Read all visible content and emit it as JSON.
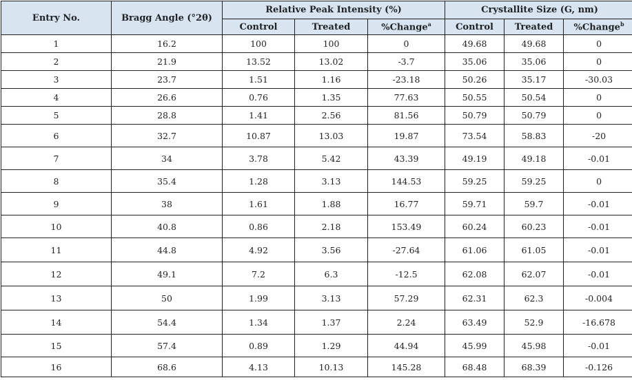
{
  "table": {
    "headers": {
      "entry": "Entry No.",
      "bragg": "Bragg Angle (°2θ)",
      "intensity_group": "Relative Peak Intensity (%)",
      "size_group": "Crystallite Size (G, nm)",
      "control": "Control",
      "treated": "Treated",
      "change": "%Change",
      "change_a_mark": "a",
      "change_b_mark": "b"
    },
    "rows": [
      {
        "entry": "1",
        "bragg": "16.2",
        "pi_control": "100",
        "pi_treated": "100",
        "pi_change": "0",
        "cs_control": "49.68",
        "cs_treated": "49.68",
        "cs_change": "0"
      },
      {
        "entry": "2",
        "bragg": "21.9",
        "pi_control": "13.52",
        "pi_treated": "13.02",
        "pi_change": "-3.7",
        "cs_control": "35.06",
        "cs_treated": "35.06",
        "cs_change": "0"
      },
      {
        "entry": "3",
        "bragg": "23.7",
        "pi_control": "1.51",
        "pi_treated": "1.16",
        "pi_change": "-23.18",
        "cs_control": "50.26",
        "cs_treated": "35.17",
        "cs_change": "-30.03"
      },
      {
        "entry": "4",
        "bragg": "26.6",
        "pi_control": "0.76",
        "pi_treated": "1.35",
        "pi_change": "77.63",
        "cs_control": "50.55",
        "cs_treated": "50.54",
        "cs_change": "0"
      },
      {
        "entry": "5",
        "bragg": "28.8",
        "pi_control": "1.41",
        "pi_treated": "2.56",
        "pi_change": "81.56",
        "cs_control": "50.79",
        "cs_treated": "50.79",
        "cs_change": "0"
      },
      {
        "entry": "6",
        "bragg": "32.7",
        "pi_control": "10.87",
        "pi_treated": "13.03",
        "pi_change": "19.87",
        "cs_control": "73.54",
        "cs_treated": "58.83",
        "cs_change": "-20"
      },
      {
        "entry": "7",
        "bragg": "34",
        "pi_control": "3.78",
        "pi_treated": "5.42",
        "pi_change": "43.39",
        "cs_control": "49.19",
        "cs_treated": "49.18",
        "cs_change": "-0.01"
      },
      {
        "entry": "8",
        "bragg": "35.4",
        "pi_control": "1.28",
        "pi_treated": "3.13",
        "pi_change": "144.53",
        "cs_control": "59.25",
        "cs_treated": "59.25",
        "cs_change": "0"
      },
      {
        "entry": "9",
        "bragg": "38",
        "pi_control": "1.61",
        "pi_treated": "1.88",
        "pi_change": "16.77",
        "cs_control": "59.71",
        "cs_treated": "59.7",
        "cs_change": "-0.01"
      },
      {
        "entry": "10",
        "bragg": "40.8",
        "pi_control": "0.86",
        "pi_treated": "2.18",
        "pi_change": "153.49",
        "cs_control": "60.24",
        "cs_treated": "60.23",
        "cs_change": "-0.01"
      },
      {
        "entry": "11",
        "bragg": "44.8",
        "pi_control": "4.92",
        "pi_treated": "3.56",
        "pi_change": "-27.64",
        "cs_control": "61.06",
        "cs_treated": "61.05",
        "cs_change": "-0.01"
      },
      {
        "entry": "12",
        "bragg": "49.1",
        "pi_control": "7.2",
        "pi_treated": "6.3",
        "pi_change": "-12.5",
        "cs_control": "62.08",
        "cs_treated": "62.07",
        "cs_change": "-0.01"
      },
      {
        "entry": "13",
        "bragg": "50",
        "pi_control": "1.99",
        "pi_treated": "3.13",
        "pi_change": "57.29",
        "cs_control": "62.31",
        "cs_treated": "62.3",
        "cs_change": "-0.004"
      },
      {
        "entry": "14",
        "bragg": "54.4",
        "pi_control": "1.34",
        "pi_treated": "1.37",
        "pi_change": "2.24",
        "cs_control": "63.49",
        "cs_treated": "52.9",
        "cs_change": "-16.678"
      },
      {
        "entry": "15",
        "bragg": "57.4",
        "pi_control": "0.89",
        "pi_treated": "1.29",
        "pi_change": "44.94",
        "cs_control": "45.99",
        "cs_treated": "45.98",
        "cs_change": "-0.01"
      },
      {
        "entry": "16",
        "bragg": "68.6",
        "pi_control": "4.13",
        "pi_treated": "10.13",
        "pi_change": "145.28",
        "cs_control": "68.48",
        "cs_treated": "68.39",
        "cs_change": "-0.126"
      }
    ]
  },
  "colors": {
    "header_bg": "#d8e4ef",
    "border": "#1f1f1f",
    "text": "#222222"
  }
}
